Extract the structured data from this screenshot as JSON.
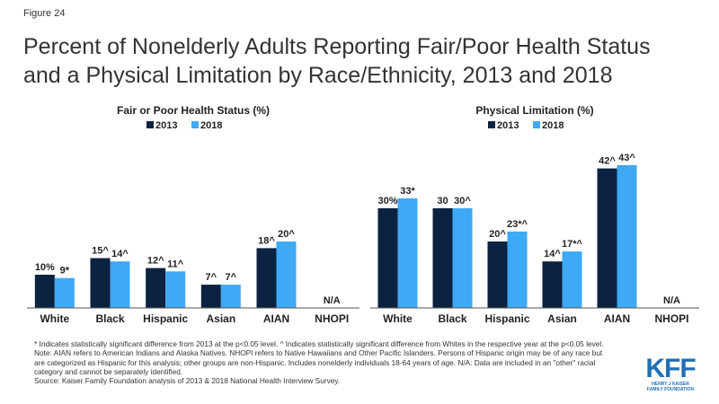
{
  "figure_label": "Figure 24",
  "title_line1": "Percent of Nonelderly Adults Reporting Fair/Poor Health Status",
  "title_line2": "and a Physical Limitation by Race/Ethnicity, 2013 and 2018",
  "colors": {
    "y2013": "#0b2240",
    "y2018": "#3ea9f5"
  },
  "chart_data": [
    {
      "type": "bar",
      "title": "Fair or Poor Health Status (%)",
      "categories": [
        "White",
        "Black",
        "Hispanic",
        "Asian",
        "AIAN",
        "NHOPI"
      ],
      "series": [
        {
          "name": "2013",
          "values": [
            10,
            15,
            12,
            7,
            18,
            null
          ],
          "labels": [
            "10%",
            "15^",
            "12^",
            "7^",
            "18^",
            ""
          ]
        },
        {
          "name": "2018",
          "values": [
            9,
            14,
            11,
            7,
            20,
            null
          ],
          "labels": [
            "9*",
            "14^",
            "11^",
            "7^",
            "20^",
            ""
          ]
        }
      ],
      "na_labels": [
        "",
        "",
        "",
        "",
        "",
        "N/A"
      ],
      "ylim": [
        0,
        50
      ],
      "legend": "top-center",
      "grid": false
    },
    {
      "type": "bar",
      "title": "Physical Limitation  (%)",
      "categories": [
        "White",
        "Black",
        "Hispanic",
        "Asian",
        "AIAN",
        "NHOPI"
      ],
      "series": [
        {
          "name": "2013",
          "values": [
            30,
            30,
            20,
            14,
            42,
            null
          ],
          "labels": [
            "30%",
            "30",
            "20^",
            "14^",
            "42^",
            ""
          ]
        },
        {
          "name": "2018",
          "values": [
            33,
            30,
            23,
            17,
            43,
            null
          ],
          "labels": [
            "33*",
            "30^",
            "23*^",
            "17*^",
            "43^",
            ""
          ]
        }
      ],
      "na_labels": [
        "",
        "",
        "",
        "",
        "",
        "N/A"
      ],
      "ylim": [
        0,
        50
      ],
      "legend": "top-center",
      "grid": false
    }
  ],
  "notes": {
    "line1": "* Indicates statistically significant difference from 2013 at the p<0.05 level. ^ Indicates statistically significant difference from Whites in the respective year at the p<0.05 level.",
    "line2": "Note: AIAN  refers to American Indians and Alaska Natives. NHOPI  refers to Native Hawaiians  and Other Pacific Islanders. Persons of Hispanic origin may be of any race but are categorized as Hispanic for this analysis; other groups are non-Hispanic. Includes nonelderly individuals 18-64 years of age. N/A:  Data are included in an \"other\" racial category and cannot be separately identified.",
    "line3": "Source: Kaiser Family Foundation analysis of 2013 & 2018 National Health Interview Survey."
  },
  "logo": {
    "text": "KFF",
    "sub1": "HENRY J KAISER",
    "sub2": "FAMILY FOUNDATION"
  }
}
